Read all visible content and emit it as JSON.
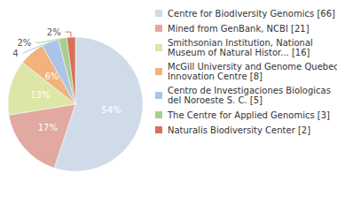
{
  "chart_data": {
    "type": "pie",
    "categories": [
      "Centre for Biodiversity Genomics [66]",
      "Mined from GenBank, NCBI [21]",
      "Smithsonian Institution, National Museum of Natural Histor... [16]",
      "McGill University and Genome Quebec Innovation Centre [8]",
      "Centro de Investigaciones Biologicas del Noroeste S. C. [5]",
      "The Centre for Applied Genomics [3]",
      "Naturalis Biodiversity Center [2]"
    ],
    "values": [
      54,
      17,
      13,
      6,
      4,
      2,
      2
    ],
    "value_labels": [
      "54%",
      "17%",
      "13%",
      "6%",
      "4%",
      "2%",
      "2%"
    ],
    "colors": [
      "#cfdbe8",
      "#e1a9a1",
      "#dde6a7",
      "#f1b27b",
      "#a9c4e6",
      "#a9cf8f",
      "#d9705b"
    ],
    "data_labels": true,
    "legend": "right"
  }
}
